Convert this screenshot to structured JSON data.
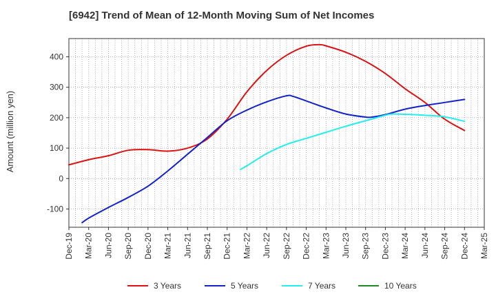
{
  "chart_data": {
    "type": "line",
    "title": "[6942]  Trend of Mean of 12-Month Moving Sum of Net Incomes",
    "xlabel": "",
    "ylabel": "Amount (million yen)",
    "ylim": [
      -160,
      460
    ],
    "yticks": [
      -100,
      0,
      100,
      200,
      300,
      400
    ],
    "grid": true,
    "legend_position": "bottom",
    "x_tick_labels": [
      "Dec-19",
      "Mar-20",
      "Jun-20",
      "Sep-20",
      "Dec-20",
      "Mar-21",
      "Jun-21",
      "Sep-21",
      "Dec-21",
      "Mar-22",
      "Jun-22",
      "Sep-22",
      "Dec-22",
      "Mar-23",
      "Jun-23",
      "Sep-23",
      "Dec-23",
      "Mar-24",
      "Jun-24",
      "Sep-24",
      "Dec-24",
      "Mar-25"
    ],
    "series": [
      {
        "name": "3 Years",
        "color": "#dd1111",
        "points": [
          [
            "Dec-19",
            45
          ],
          [
            "Mar-20",
            62
          ],
          [
            "Jun-20",
            75
          ],
          [
            "Sep-20",
            93
          ],
          [
            "Dec-20",
            95
          ],
          [
            "Mar-21",
            90
          ],
          [
            "Jun-21",
            100
          ],
          [
            "Sep-21",
            130
          ],
          [
            "Dec-21",
            195
          ],
          [
            "Mar-22",
            285
          ],
          [
            "Jun-22",
            355
          ],
          [
            "Sep-22",
            405
          ],
          [
            "Dec-22",
            435
          ],
          [
            "Feb-23",
            440
          ],
          [
            "Mar-23",
            436
          ],
          [
            "Jun-23",
            415
          ],
          [
            "Sep-23",
            385
          ],
          [
            "Dec-23",
            345
          ],
          [
            "Mar-24",
            295
          ],
          [
            "Jun-24",
            250
          ],
          [
            "Sep-24",
            195
          ],
          [
            "Dec-24",
            158
          ]
        ]
      },
      {
        "name": "5 Years",
        "color": "#1122cc",
        "points": [
          [
            "Feb-20",
            -145
          ],
          [
            "Mar-20",
            -130
          ],
          [
            "Jun-20",
            -95
          ],
          [
            "Sep-20",
            -62
          ],
          [
            "Dec-20",
            -25
          ],
          [
            "Mar-21",
            25
          ],
          [
            "Jun-21",
            80
          ],
          [
            "Sep-21",
            135
          ],
          [
            "Dec-21",
            190
          ],
          [
            "Mar-22",
            225
          ],
          [
            "Jun-22",
            252
          ],
          [
            "Sep-22",
            272
          ],
          [
            "Oct-22",
            270
          ],
          [
            "Dec-22",
            255
          ],
          [
            "Mar-23",
            232
          ],
          [
            "Jun-23",
            212
          ],
          [
            "Sep-23",
            202
          ],
          [
            "Oct-23",
            202
          ],
          [
            "Dec-23",
            210
          ],
          [
            "Mar-24",
            228
          ],
          [
            "Jun-24",
            240
          ],
          [
            "Sep-24",
            250
          ],
          [
            "Dec-24",
            260
          ]
        ]
      },
      {
        "name": "7 Years",
        "color": "#22eeee",
        "points": [
          [
            "Feb-22",
            30
          ],
          [
            "Mar-22",
            42
          ],
          [
            "Jun-22",
            82
          ],
          [
            "Sep-22",
            112
          ],
          [
            "Dec-22",
            132
          ],
          [
            "Mar-23",
            152
          ],
          [
            "Jun-23",
            172
          ],
          [
            "Sep-23",
            190
          ],
          [
            "Dec-23",
            208
          ],
          [
            "Jan-24",
            212
          ],
          [
            "Mar-24",
            211
          ],
          [
            "Jun-24",
            208
          ],
          [
            "Sep-24",
            203
          ],
          [
            "Dec-24",
            188
          ]
        ]
      },
      {
        "name": "10 Years",
        "color": "#228822",
        "points": []
      }
    ]
  }
}
